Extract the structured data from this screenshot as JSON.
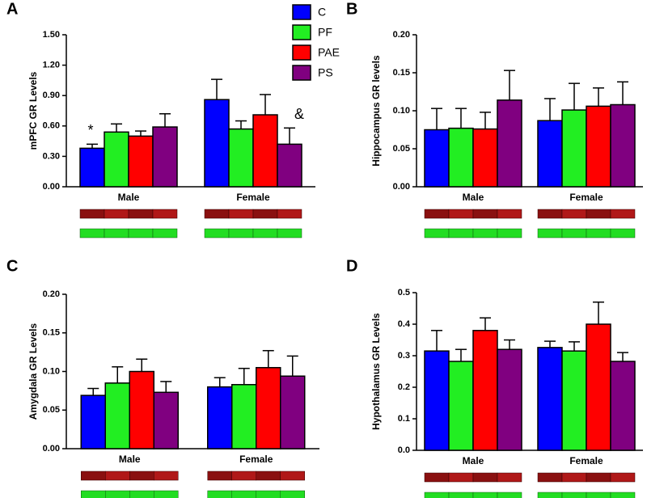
{
  "chart_data": [
    {
      "type": "bar",
      "label": "A",
      "y_label": "mPFC GR Levels",
      "categories": [
        "Male",
        "Female"
      ],
      "ylim": [
        0,
        1.5
      ],
      "yticks": [
        {
          "value": 0,
          "label": "0.00"
        },
        {
          "value": 0.3,
          "label": "0.30"
        },
        {
          "value": 0.6,
          "label": "0.60"
        },
        {
          "value": 0.9,
          "label": "0.90"
        },
        {
          "value": 1.2,
          "label": "1.20"
        },
        {
          "value": 1.5,
          "label": "1.50"
        }
      ],
      "annotations": [
        "*",
        "&"
      ],
      "series": [
        {
          "name": "C",
          "color": "#0000ff",
          "values": [
            0.38,
            0.86
          ],
          "errors": [
            0.04,
            0.2
          ]
        },
        {
          "name": "PF",
          "color": "#22ee22",
          "values": [
            0.54,
            0.57
          ],
          "errors": [
            0.08,
            0.08
          ]
        },
        {
          "name": "PAE",
          "color": "#ff0000",
          "values": [
            0.5,
            0.71
          ],
          "errors": [
            0.05,
            0.2
          ]
        },
        {
          "name": "PS",
          "color": "#800080",
          "values": [
            0.59,
            0.42
          ],
          "errors": [
            0.13,
            0.16
          ]
        }
      ]
    },
    {
      "type": "bar",
      "label": "B",
      "y_label": "Hippocampus GR levels",
      "categories": [
        "Male",
        "Female"
      ],
      "ylim": [
        0,
        0.2
      ],
      "yticks": [
        {
          "value": 0,
          "label": "0.00"
        },
        0.05,
        {
          "value": 0.1,
          "label": "0.10"
        },
        0.15,
        {
          "value": 0.2,
          "label": "0.20"
        }
      ],
      "series": [
        {
          "color": "#0000ff",
          "values": [
            0.075,
            0.087
          ],
          "errors": [
            0.028,
            0.029
          ]
        },
        {
          "color": "#22ee22",
          "values": [
            0.077,
            0.101
          ],
          "errors": [
            0.026,
            0.035
          ]
        },
        {
          "color": "#ff0000",
          "values": [
            0.076,
            0.106
          ],
          "errors": [
            0.022,
            0.024
          ]
        },
        {
          "color": "#800080",
          "values": [
            0.114,
            0.108
          ],
          "errors": [
            0.039,
            0.03
          ]
        }
      ]
    },
    {
      "type": "bar",
      "label": "C",
      "y_label": "Amygdala GR Levels",
      "categories": [
        "Male",
        "Female"
      ],
      "ylim": [
        0,
        0.2
      ],
      "yticks": [
        {
          "value": 0,
          "label": "0.00"
        },
        0.05,
        {
          "value": 0.1,
          "label": "0.10"
        },
        0.15,
        {
          "value": 0.2,
          "label": "0.20"
        }
      ],
      "series": [
        {
          "color": "#0000ff",
          "values": [
            0.069,
            0.08
          ],
          "errors": [
            0.009,
            0.012
          ]
        },
        {
          "color": "#22ee22",
          "values": [
            0.085,
            0.083
          ],
          "errors": [
            0.021,
            0.021
          ]
        },
        {
          "color": "#ff0000",
          "values": [
            0.1,
            0.105
          ],
          "errors": [
            0.016,
            0.022
          ]
        },
        {
          "color": "#800080",
          "values": [
            0.073,
            0.094
          ],
          "errors": [
            0.014,
            0.026
          ]
        }
      ]
    },
    {
      "type": "bar",
      "label": "D",
      "y_label": "Hypothalamus GR Levels",
      "categories": [
        "Male",
        "Female"
      ],
      "ylim": [
        0,
        0.5
      ],
      "yticks": [
        {
          "value": 0,
          "label": "0.0"
        },
        0.1,
        0.2,
        0.3,
        0.4,
        0.5
      ],
      "series": [
        {
          "color": "#0000ff",
          "values": [
            0.315,
            0.326
          ],
          "errors": [
            0.065,
            0.02
          ]
        },
        {
          "color": "#22ee22",
          "values": [
            0.282,
            0.315
          ],
          "errors": [
            0.038,
            0.029
          ]
        },
        {
          "color": "#ff0000",
          "values": [
            0.38,
            0.4
          ],
          "errors": [
            0.04,
            0.07
          ]
        },
        {
          "color": "#800080",
          "values": [
            0.32,
            0.282
          ],
          "errors": [
            0.03,
            0.028
          ]
        }
      ]
    }
  ]
}
